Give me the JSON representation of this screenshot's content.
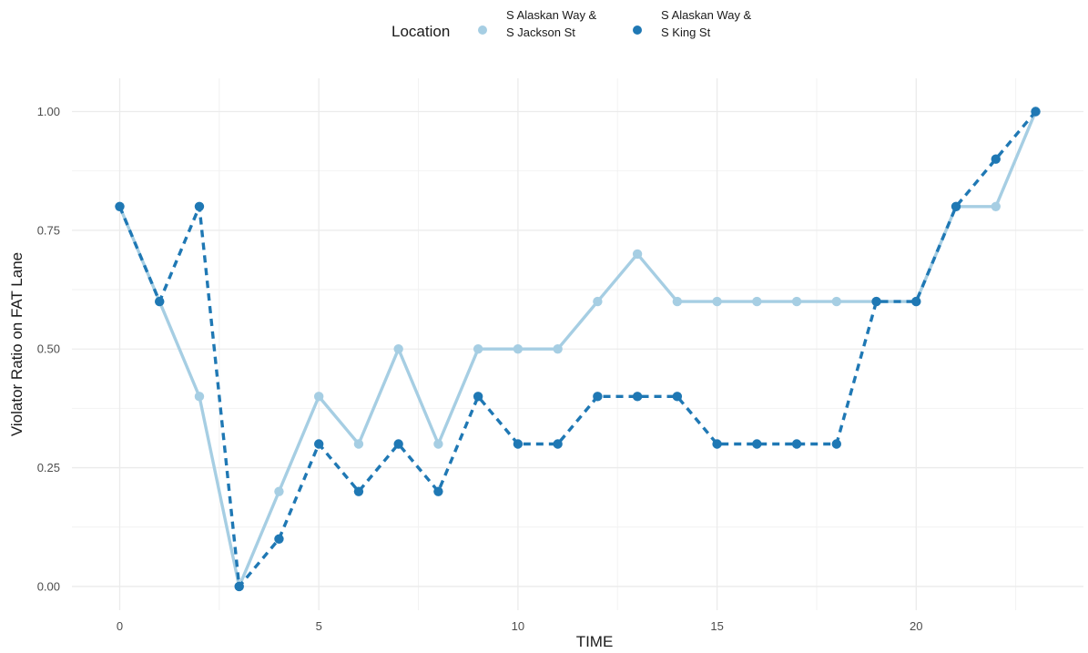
{
  "chart_data": {
    "type": "line",
    "xlabel": "TIME",
    "ylabel": "Violator Ratio on FAT Lane",
    "xlim": [
      -1.2,
      24.2
    ],
    "ylim": [
      -0.05,
      1.07
    ],
    "x_ticks": [
      0,
      5,
      10,
      15,
      20
    ],
    "x_tick_labels": [
      "0",
      "5",
      "10",
      "15",
      "20"
    ],
    "y_ticks": [
      0,
      0.25,
      0.5,
      0.75,
      1
    ],
    "y_tick_labels": [
      "0.00",
      "0.25",
      "0.50",
      "0.75",
      "1.00"
    ],
    "grid": true,
    "legend": {
      "title": "Location",
      "position": "top",
      "entries": [
        {
          "line1": "S Alaskan Way &",
          "line2": "S Jackson St"
        },
        {
          "line1": "S Alaskan Way &",
          "line2": "S King St"
        }
      ]
    },
    "x": [
      0,
      1,
      2,
      3,
      4,
      5,
      6,
      7,
      8,
      9,
      10,
      11,
      12,
      13,
      14,
      15,
      16,
      17,
      18,
      19,
      20,
      21,
      22,
      23
    ],
    "series": [
      {
        "name": "S Alaskan Way & S Jackson St",
        "color": "#a6cee3",
        "line_style": "solid",
        "values": [
          0.8,
          0.6,
          0.4,
          0.0,
          0.2,
          0.4,
          0.3,
          0.5,
          0.3,
          0.5,
          0.5,
          0.5,
          0.6,
          0.7,
          0.6,
          0.6,
          0.6,
          0.6,
          0.6,
          0.6,
          0.6,
          0.8,
          0.8,
          1.0
        ]
      },
      {
        "name": "S Alaskan Way & S King St",
        "color": "#1f78b4",
        "line_style": "dashed",
        "values": [
          0.8,
          0.6,
          0.8,
          0.0,
          0.1,
          0.3,
          0.2,
          0.3,
          0.2,
          0.4,
          0.3,
          0.3,
          0.4,
          0.4,
          0.4,
          0.3,
          0.3,
          0.3,
          0.3,
          0.6,
          0.6,
          0.8,
          0.9,
          1.0
        ]
      }
    ]
  }
}
